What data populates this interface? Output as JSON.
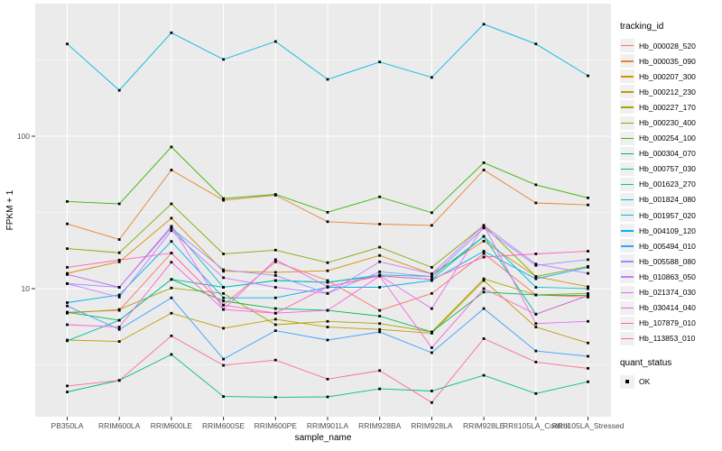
{
  "chart_data": {
    "type": "line",
    "xlabel": "sample_name",
    "ylabel": "FPKM + 1",
    "y_scale": "log10",
    "y_ticks": [
      100,
      10
    ],
    "y_minor_gridlines": [
      3.162,
      31.62,
      316.2
    ],
    "ylim": [
      1.45,
      720
    ],
    "grid": "on",
    "legend_position": "right",
    "legend_title": "tracking_id",
    "point_shape": "black-square",
    "categories": [
      "PB350LA",
      "RRIM600LA",
      "RRIM600LE",
      "RRIM600SE",
      "RRIM600PE",
      "RRIM901LA",
      "RRIM928BA",
      "RRIM928LA",
      "RRIM928LE",
      "RRII105LA_Control",
      "RRII105LA_Stressed"
    ],
    "series": [
      {
        "name": "Hb_000028_520",
        "color": "#F8766D",
        "values": [
          7.0,
          7.2,
          17.1,
          7.8,
          15.0,
          11.3,
          7.2,
          9.3,
          17.0,
          9.1,
          8.8
        ]
      },
      {
        "name": "Hb_000035_090",
        "color": "#EA8331",
        "values": [
          26.6,
          21.0,
          60.0,
          38.0,
          41.0,
          27.5,
          26.5,
          26.0,
          60.0,
          36.5,
          35.4
        ]
      },
      {
        "name": "Hb_000207_300",
        "color": "#D89000",
        "values": [
          12.6,
          15.0,
          29.0,
          13.0,
          12.8,
          13.1,
          16.5,
          12.5,
          20.5,
          12.0,
          10.3
        ]
      },
      {
        "name": "Hb_000212_230",
        "color": "#C09B00",
        "values": [
          4.6,
          4.5,
          6.9,
          5.5,
          6.3,
          5.6,
          5.4,
          5.1,
          11.3,
          5.6,
          4.4
        ]
      },
      {
        "name": "Hb_000227_170",
        "color": "#A3A500",
        "values": [
          6.9,
          7.3,
          10.1,
          9.3,
          5.8,
          6.1,
          5.9,
          5.2,
          11.6,
          9.1,
          9.3
        ]
      },
      {
        "name": "Hb_000230_400",
        "color": "#7CAE00",
        "values": [
          18.3,
          17.2,
          36.0,
          16.9,
          17.9,
          14.8,
          18.7,
          13.8,
          26.0,
          12.0,
          14.0
        ]
      },
      {
        "name": "Hb_000254_100",
        "color": "#39B600",
        "values": [
          37.3,
          36.0,
          85.0,
          39.0,
          41.5,
          31.7,
          40.0,
          31.5,
          67.0,
          48.0,
          39.4
        ]
      },
      {
        "name": "Hb_000304_070",
        "color": "#00BB4E",
        "values": [
          7.0,
          6.2,
          11.5,
          8.3,
          7.4,
          7.2,
          6.6,
          5.2,
          9.5,
          9.1,
          9.0
        ]
      },
      {
        "name": "Hb_000757_030",
        "color": "#00BF7D",
        "values": [
          2.1,
          2.5,
          3.7,
          1.96,
          1.94,
          1.95,
          2.2,
          2.13,
          2.7,
          2.05,
          2.45
        ]
      },
      {
        "name": "Hb_001623_270",
        "color": "#00C1A3",
        "values": [
          4.55,
          6.2,
          11.5,
          10.2,
          11.3,
          11.0,
          12.1,
          11.5,
          22.0,
          6.8,
          9.0
        ]
      },
      {
        "name": "Hb_001824_080",
        "color": "#00BFC4",
        "values": [
          12.4,
          10.2,
          25.6,
          10.2,
          11.3,
          11.0,
          12.3,
          12.0,
          22.0,
          10.2,
          10.0
        ]
      },
      {
        "name": "Hb_001957_020",
        "color": "#00BAE0",
        "values": [
          403,
          200,
          477,
          319,
          418,
          236,
          307,
          243,
          543,
          403,
          249
        ]
      },
      {
        "name": "Hb_004109_120",
        "color": "#00B0F6",
        "values": [
          8.1,
          9.1,
          20.4,
          8.7,
          8.7,
          10.2,
          10.2,
          11.3,
          17.6,
          11.6,
          13.8
        ]
      },
      {
        "name": "Hb_005494_010",
        "color": "#35A2FF",
        "values": [
          7.7,
          5.4,
          8.7,
          3.45,
          5.3,
          4.6,
          5.2,
          3.8,
          7.4,
          3.9,
          3.6
        ]
      },
      {
        "name": "Hb_005588_080",
        "color": "#9590FF",
        "values": [
          10.8,
          10.2,
          25.0,
          13.3,
          12.2,
          9.3,
          12.9,
          12.0,
          25.0,
          14.2,
          15.5
        ]
      },
      {
        "name": "Hb_010863_050",
        "color": "#C77CFF",
        "values": [
          10.8,
          8.8,
          24.0,
          11.8,
          10.2,
          9.3,
          15.0,
          12.5,
          26.0,
          14.5,
          12.6
        ]
      },
      {
        "name": "Hb_021374_030",
        "color": "#E76BF3",
        "values": [
          12.4,
          10.2,
          25.6,
          7.3,
          15.5,
          10.3,
          12.2,
          7.4,
          26.0,
          5.9,
          6.1
        ]
      },
      {
        "name": "Hb_030414_040",
        "color": "#FA62DB",
        "values": [
          5.8,
          5.6,
          14.9,
          7.3,
          6.9,
          7.2,
          12.1,
          4.1,
          10.0,
          6.8,
          9.0
        ]
      },
      {
        "name": "Hb_107879_010",
        "color": "#FF62BC",
        "values": [
          13.8,
          15.4,
          17.1,
          7.8,
          6.9,
          10.3,
          12.1,
          11.5,
          16.1,
          16.9,
          17.6
        ]
      },
      {
        "name": "Hb_113853_010",
        "color": "#FF6A98",
        "values": [
          2.3,
          2.5,
          4.9,
          3.14,
          3.4,
          2.55,
          2.9,
          1.79,
          4.7,
          3.3,
          3.0
        ]
      }
    ]
  },
  "legend_quant": {
    "title": "quant_status",
    "items": [
      {
        "label": "OK"
      }
    ]
  },
  "colors": {
    "panel_bg": "#EBEBEB",
    "gridline": "#FFFFFF",
    "tick_label": "#4D4D4D",
    "tick_mark": "#333333",
    "point": "#000000",
    "legend_key_bg": "#F0F0F0"
  }
}
